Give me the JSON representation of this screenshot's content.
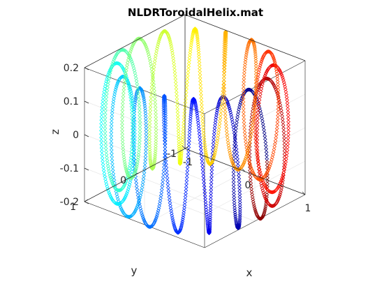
{
  "chart_data": {
    "type": "scatter",
    "dimension": "3d",
    "title": "NLDRToroidalHelix.mat",
    "xlabel": "x",
    "ylabel": "y",
    "zlabel": "z",
    "xlim": [
      -1,
      1
    ],
    "ylim": [
      -1,
      1
    ],
    "zlim": [
      -0.2,
      0.2
    ],
    "x_ticks": [
      "-1",
      "0",
      "1"
    ],
    "y_ticks": [
      "-1",
      "0",
      "1"
    ],
    "z_ticks": [
      "-0.2",
      "-0.1",
      "0",
      "0.1",
      "0.2"
    ],
    "grid": true,
    "box": true,
    "colormap": "jet",
    "marker": "diamond",
    "series": [
      {
        "shape": "toroidal helix",
        "major_radius": 1.0,
        "tube_radius": 0.2,
        "windings": 16,
        "points": 2000,
        "color_by": "angle around torus"
      }
    ]
  }
}
